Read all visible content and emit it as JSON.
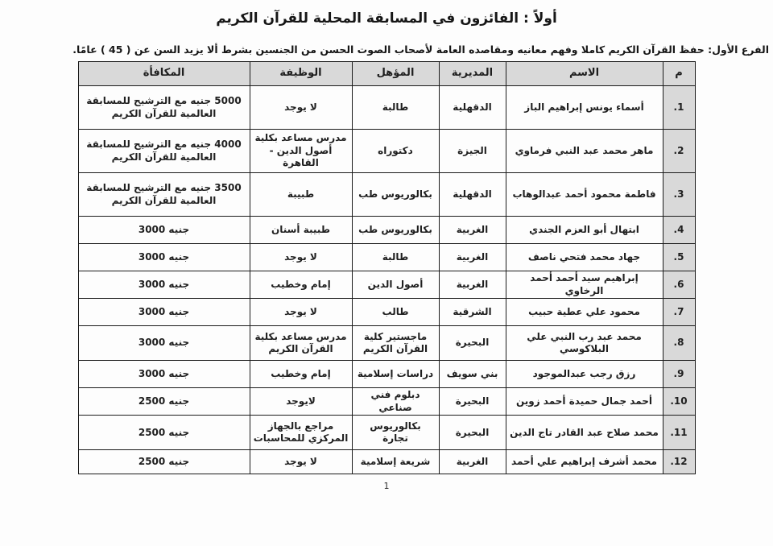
{
  "page": {
    "title": "أولاً : الفائزون في المسابقة المحلية للقرآن الكريم",
    "branch_label": "الفرع الأول:",
    "branch_text": "  حفظ القرآن الكريم كاملا وفهم معانيه ومقاصده العامة لأصحاب الصوت الحسن من الجنسين بشرط ألا يزيد السن عن ( 45 ) عامًا.",
    "page_number": "1"
  },
  "colors": {
    "header_bg": "#d9d9d9",
    "border": "#1b1b1b",
    "text": "#1f1f1f"
  },
  "table": {
    "headers": {
      "num": "م",
      "name": "الاسم",
      "directorate": "المديرية",
      "qualification": "المؤهل",
      "job": "الوظيفة",
      "reward": "المكافأة"
    },
    "rows": [
      {
        "num": "1.",
        "name": "أسماء يونس إبراهيم الباز",
        "directorate": "الدقهلية",
        "qualification": "طالبة",
        "job": "لا يوجد",
        "reward": "5000 جنيه مع الترشيح للمسابقة العالمية للقرآن الكريم"
      },
      {
        "num": "2.",
        "name": "ماهر محمد عبد النبي فرماوي",
        "directorate": "الجيزة",
        "qualification": "دكتوراه",
        "job": "مدرس مساعد بكلية أصول الدين - القاهرة",
        "reward": "4000 جنيه مع الترشيح للمسابقة العالمية للقرآن الكريم"
      },
      {
        "num": "3.",
        "name": "فاطمة محمود أحمد عبدالوهاب",
        "directorate": "الدقهلية",
        "qualification": "بكالوريوس طب",
        "job": "طبيبة",
        "reward": "3500 جنيه مع الترشيح للمسابقة العالمية للقرآن الكريم"
      },
      {
        "num": "4.",
        "name": "ابتهال أبو العزم الجندي",
        "directorate": "الغربية",
        "qualification": "بكالوريوس طب",
        "job": "طبيبة أسنان",
        "reward": "3000 جنيه"
      },
      {
        "num": "5.",
        "name": "جهاد محمد فتحي ناصف",
        "directorate": "الغربية",
        "qualification": "طالبة",
        "job": "لا يوجد",
        "reward": "3000 جنيه"
      },
      {
        "num": "6.",
        "name": "إبراهيم سيد أحمد  أحمد الرخاوي",
        "directorate": "الغربية",
        "qualification": "أصول الدين",
        "job": "إمام وخطيب",
        "reward": "3000 جنيه"
      },
      {
        "num": "7.",
        "name": "محمود علي عطية حبيب",
        "directorate": "الشرقية",
        "qualification": "طالب",
        "job": "لا يوجد",
        "reward": "3000 جنيه"
      },
      {
        "num": "8.",
        "name": "محمد عبد رب النبي علي البلاكوسي",
        "directorate": "البحيرة",
        "qualification": "ماجستير كلية القرآن الكريم",
        "job": "مدرس مساعد بكلية القرآن الكريم",
        "reward": "3000 جنيه"
      },
      {
        "num": "9.",
        "name": "رزق رجب عبدالموجود",
        "directorate": "بني سويف",
        "qualification": "دراسات إسلامية",
        "job": "إمام وخطيب",
        "reward": "3000 جنيه"
      },
      {
        "num": "10.",
        "name": "أحمد جمال حميدة أحمد زوين",
        "directorate": "البحيرة",
        "qualification": "دبلوم فني صناعي",
        "job": "لايوجد",
        "reward": "2500 جنيه"
      },
      {
        "num": "11.",
        "name": "محمد صلاح عبد القادر تاج الدين",
        "directorate": "البحيرة",
        "qualification": "بكالوريوس تجارة",
        "job": "مراجع بالجهاز المركزي للمحاسبات",
        "reward": "2500 جنيه"
      },
      {
        "num": "12.",
        "name": "محمد أشرف إبراهيم علي أحمد",
        "directorate": "الغربية",
        "qualification": "شريعة إسلامية",
        "job": "لا يوجد",
        "reward": "2500 جنيه"
      }
    ]
  }
}
